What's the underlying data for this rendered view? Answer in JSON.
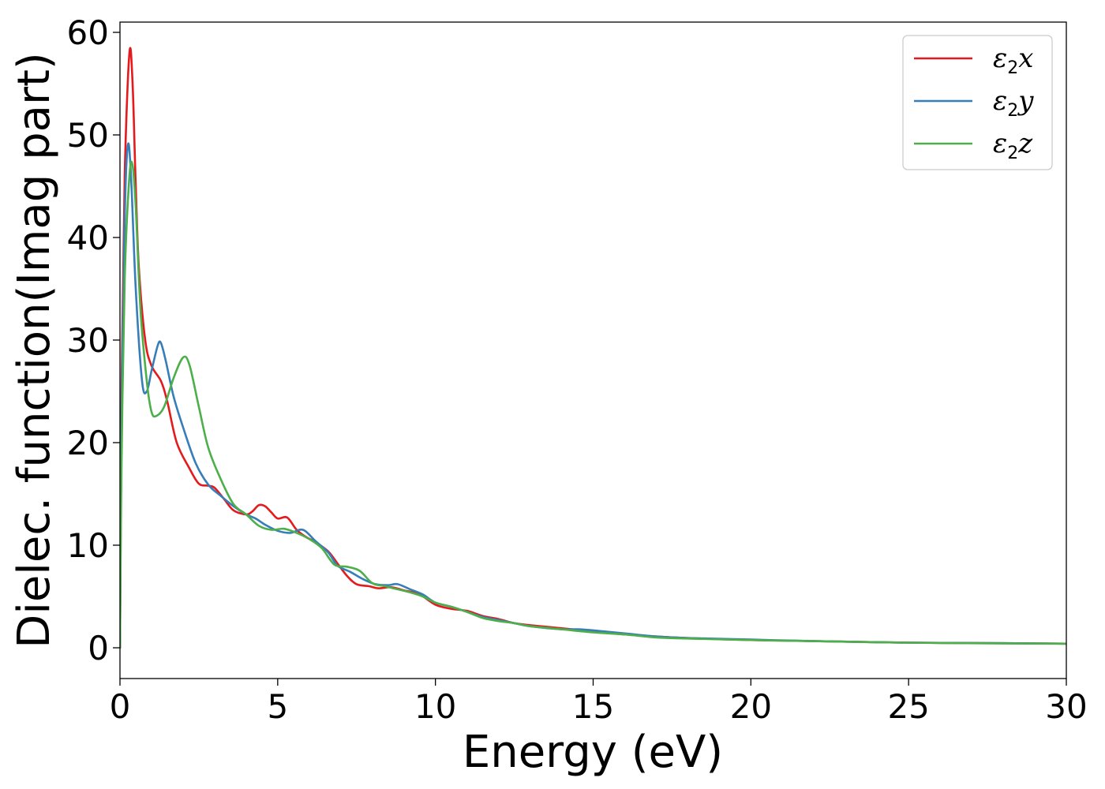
{
  "chart_data": {
    "type": "line",
    "title": "",
    "xlabel": "Energy (eV)",
    "ylabel": "Dielec. function(Imag part)",
    "xlim": [
      0,
      30
    ],
    "ylim": [
      -3,
      61
    ],
    "xticks": [
      0,
      5,
      10,
      15,
      20,
      25,
      30
    ],
    "yticks": [
      0,
      10,
      20,
      30,
      40,
      50,
      60
    ],
    "grid": false,
    "legend_position": "top-right",
    "series": [
      {
        "name": "ε₂x",
        "legend_base": "ε",
        "legend_sub": "2",
        "legend_tail": "x",
        "color": "#e41a1c",
        "points": [
          [
            0,
            0
          ],
          [
            0.05,
            25
          ],
          [
            0.15,
            46
          ],
          [
            0.3,
            58
          ],
          [
            0.4,
            55
          ],
          [
            0.5,
            45
          ],
          [
            0.6,
            37
          ],
          [
            0.8,
            30
          ],
          [
            1.0,
            27.5
          ],
          [
            1.3,
            26
          ],
          [
            1.5,
            24
          ],
          [
            1.8,
            20
          ],
          [
            2.2,
            17.5
          ],
          [
            2.5,
            16
          ],
          [
            2.8,
            15.8
          ],
          [
            3.0,
            15.6
          ],
          [
            3.3,
            14.5
          ],
          [
            3.6,
            13.4
          ],
          [
            4.0,
            13
          ],
          [
            4.2,
            13.3
          ],
          [
            4.4,
            13.9
          ],
          [
            4.6,
            13.8
          ],
          [
            4.8,
            13.2
          ],
          [
            5.0,
            12.6
          ],
          [
            5.3,
            12.7
          ],
          [
            5.6,
            11.5
          ],
          [
            5.9,
            10.8
          ],
          [
            6.2,
            10.3
          ],
          [
            6.6,
            9.4
          ],
          [
            6.9,
            8.2
          ],
          [
            7.2,
            7.0
          ],
          [
            7.5,
            6.2
          ],
          [
            7.9,
            6.0
          ],
          [
            8.2,
            5.8
          ],
          [
            8.6,
            5.9
          ],
          [
            9.0,
            5.6
          ],
          [
            9.5,
            5.2
          ],
          [
            10.0,
            4.2
          ],
          [
            10.5,
            3.8
          ],
          [
            11.0,
            3.6
          ],
          [
            11.5,
            3.1
          ],
          [
            12.0,
            2.8
          ],
          [
            12.5,
            2.4
          ],
          [
            13.0,
            2.2
          ],
          [
            14.0,
            1.9
          ],
          [
            15.0,
            1.6
          ],
          [
            16.0,
            1.3
          ],
          [
            17.0,
            1.1
          ],
          [
            18.0,
            0.95
          ],
          [
            20.0,
            0.75
          ],
          [
            22.0,
            0.65
          ],
          [
            25.0,
            0.5
          ],
          [
            28.0,
            0.45
          ],
          [
            30.0,
            0.4
          ]
        ]
      },
      {
        "name": "ε₂y",
        "legend_base": "ε",
        "legend_sub": "2",
        "legend_tail": "y",
        "color": "#377eb8",
        "points": [
          [
            0,
            0
          ],
          [
            0.05,
            22
          ],
          [
            0.15,
            42
          ],
          [
            0.25,
            49
          ],
          [
            0.35,
            46
          ],
          [
            0.5,
            35
          ],
          [
            0.7,
            26
          ],
          [
            0.85,
            25
          ],
          [
            1.0,
            27
          ],
          [
            1.2,
            29.5
          ],
          [
            1.3,
            29.7
          ],
          [
            1.45,
            28
          ],
          [
            1.7,
            24.5
          ],
          [
            2.0,
            21.5
          ],
          [
            2.4,
            18
          ],
          [
            2.8,
            15.9
          ],
          [
            3.2,
            14.8
          ],
          [
            3.6,
            13.8
          ],
          [
            4.0,
            13
          ],
          [
            4.3,
            12.6
          ],
          [
            4.6,
            12
          ],
          [
            5.0,
            11.4
          ],
          [
            5.4,
            11.2
          ],
          [
            5.8,
            11.5
          ],
          [
            6.2,
            10.4
          ],
          [
            6.6,
            9.3
          ],
          [
            6.9,
            8.0
          ],
          [
            7.3,
            7.4
          ],
          [
            7.7,
            6.7
          ],
          [
            8.1,
            6.2
          ],
          [
            8.5,
            6.1
          ],
          [
            8.8,
            6.2
          ],
          [
            9.2,
            5.7
          ],
          [
            9.6,
            5.2
          ],
          [
            10.0,
            4.4
          ],
          [
            10.5,
            4.0
          ],
          [
            11.0,
            3.5
          ],
          [
            11.5,
            3.0
          ],
          [
            12.0,
            2.7
          ],
          [
            12.5,
            2.4
          ],
          [
            13.0,
            2.1
          ],
          [
            14.0,
            1.8
          ],
          [
            14.5,
            1.8
          ],
          [
            15.0,
            1.7
          ],
          [
            16.0,
            1.4
          ],
          [
            17.0,
            1.1
          ],
          [
            18.0,
            0.95
          ],
          [
            20.0,
            0.8
          ],
          [
            22.0,
            0.65
          ],
          [
            25.0,
            0.5
          ],
          [
            28.0,
            0.45
          ],
          [
            30.0,
            0.4
          ]
        ]
      },
      {
        "name": "ε₂z",
        "legend_base": "ε",
        "legend_sub": "2",
        "legend_tail": "z",
        "color": "#4daf4a",
        "points": [
          [
            0,
            0
          ],
          [
            0.05,
            18
          ],
          [
            0.15,
            36
          ],
          [
            0.3,
            46
          ],
          [
            0.4,
            47
          ],
          [
            0.5,
            43
          ],
          [
            0.65,
            33
          ],
          [
            0.85,
            26
          ],
          [
            1.0,
            23
          ],
          [
            1.15,
            22.6
          ],
          [
            1.4,
            23.5
          ],
          [
            1.7,
            26.3
          ],
          [
            2.0,
            28.3
          ],
          [
            2.2,
            27.6
          ],
          [
            2.5,
            23.5
          ],
          [
            2.8,
            19.5
          ],
          [
            3.2,
            16.4
          ],
          [
            3.6,
            14
          ],
          [
            4.0,
            13
          ],
          [
            4.4,
            11.9
          ],
          [
            4.8,
            11.5
          ],
          [
            5.2,
            11.6
          ],
          [
            5.6,
            11.2
          ],
          [
            6.0,
            10.6
          ],
          [
            6.4,
            9.7
          ],
          [
            6.8,
            8.1
          ],
          [
            7.2,
            7.9
          ],
          [
            7.6,
            7.5
          ],
          [
            8.0,
            6.3
          ],
          [
            8.4,
            6.0
          ],
          [
            8.8,
            5.7
          ],
          [
            9.2,
            5.4
          ],
          [
            9.6,
            5.0
          ],
          [
            10.0,
            4.4
          ],
          [
            10.5,
            4.0
          ],
          [
            11.0,
            3.5
          ],
          [
            11.5,
            2.9
          ],
          [
            12.0,
            2.6
          ],
          [
            12.5,
            2.4
          ],
          [
            13.0,
            2.1
          ],
          [
            14.0,
            1.8
          ],
          [
            15.0,
            1.5
          ],
          [
            16.0,
            1.3
          ],
          [
            17.0,
            1.0
          ],
          [
            18.0,
            0.9
          ],
          [
            20.0,
            0.75
          ],
          [
            22.0,
            0.65
          ],
          [
            25.0,
            0.5
          ],
          [
            28.0,
            0.42
          ],
          [
            30.0,
            0.4
          ]
        ]
      }
    ]
  }
}
